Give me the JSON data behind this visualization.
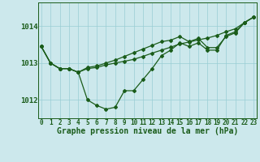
{
  "title": "Graphe pression niveau de la mer (hPa)",
  "background_color": "#cce8ec",
  "grid_color": "#99cdd4",
  "line_color": "#1a5c1a",
  "x_labels": [
    "0",
    "1",
    "2",
    "3",
    "4",
    "5",
    "6",
    "7",
    "8",
    "9",
    "10",
    "11",
    "12",
    "13",
    "14",
    "15",
    "16",
    "17",
    "18",
    "19",
    "20",
    "21",
    "22",
    "23"
  ],
  "y_ticks": [
    1012,
    1013,
    1014
  ],
  "ylim": [
    1011.5,
    1014.65
  ],
  "xlim": [
    -0.3,
    23.3
  ],
  "series1": [
    1013.45,
    1013.0,
    1012.85,
    1012.85,
    1012.75,
    1012.0,
    1011.85,
    1011.75,
    1011.8,
    1012.25,
    1012.25,
    1012.55,
    1012.85,
    1013.2,
    1013.35,
    1013.55,
    1013.45,
    1013.55,
    1013.35,
    1013.35,
    1013.75,
    1013.85,
    1014.1,
    1014.25
  ],
  "series2": [
    1013.45,
    1013.0,
    1012.85,
    1012.85,
    1012.75,
    1012.85,
    1012.88,
    1012.95,
    1013.0,
    1013.05,
    1013.1,
    1013.18,
    1013.27,
    1013.35,
    1013.43,
    1013.52,
    1013.57,
    1013.63,
    1013.68,
    1013.75,
    1013.85,
    1013.93,
    1014.1,
    1014.25
  ],
  "series3": [
    1013.45,
    1013.0,
    1012.85,
    1012.85,
    1012.75,
    1012.88,
    1012.92,
    1013.0,
    1013.08,
    1013.18,
    1013.28,
    1013.38,
    1013.48,
    1013.58,
    1013.62,
    1013.72,
    1013.58,
    1013.67,
    1013.42,
    1013.42,
    1013.72,
    1013.82,
    1014.1,
    1014.25
  ],
  "title_color": "#1a5c1a",
  "title_fontsize": 7.0,
  "tick_fontsize": 5.5,
  "ytick_fontsize": 6.5
}
